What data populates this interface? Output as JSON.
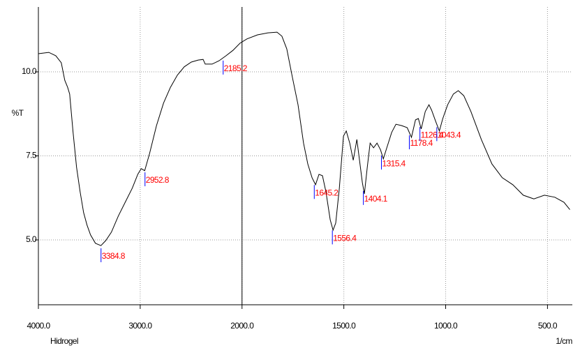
{
  "chart_data": {
    "type": "line",
    "ylabel": "%T",
    "xlabel": "1/cm",
    "caption": "Hidrogel",
    "x": [
      4000,
      3898,
      3829,
      3775,
      3741,
      3713,
      3693,
      3659,
      3625,
      3590,
      3556,
      3522,
      3488,
      3440,
      3386,
      3338,
      3283,
      3215,
      3147,
      3078,
      3024,
      2990,
      2956,
      2908,
      2840,
      2771,
      2703,
      2635,
      2567,
      2498,
      2430,
      2382,
      2362,
      2294,
      2225,
      2157,
      2089,
      2020,
      1976,
      1924,
      1873,
      1828,
      1804,
      1780,
      1753,
      1725,
      1698,
      1677,
      1656,
      1639,
      1622,
      1605,
      1588,
      1567,
      1553,
      1540,
      1522,
      1502,
      1488,
      1471,
      1454,
      1436,
      1423,
      1409,
      1399,
      1385,
      1371,
      1354,
      1337,
      1320,
      1306,
      1289,
      1265,
      1244,
      1216,
      1189,
      1168,
      1148,
      1134,
      1120,
      1100,
      1082,
      1069,
      1048,
      1031,
      1014,
      990,
      962,
      938,
      911,
      876,
      825,
      773,
      722,
      670,
      619,
      567,
      515,
      464,
      419,
      390
    ],
    "values": [
      10.54,
      10.58,
      10.48,
      10.27,
      9.75,
      9.54,
      9.34,
      8.2,
      7.16,
      6.43,
      5.81,
      5.44,
      5.15,
      4.9,
      4.83,
      4.98,
      5.23,
      5.71,
      6.12,
      6.54,
      6.95,
      7.12,
      7.06,
      7.57,
      8.4,
      9.07,
      9.54,
      9.9,
      10.15,
      10.29,
      10.35,
      10.37,
      10.23,
      10.23,
      10.33,
      10.48,
      10.64,
      10.85,
      10.98,
      11.1,
      11.16,
      11.18,
      11.06,
      10.68,
      9.85,
      9.02,
      7.88,
      7.26,
      6.85,
      6.64,
      6.95,
      6.91,
      6.43,
      5.6,
      5.29,
      5.5,
      6.54,
      8.09,
      8.24,
      7.88,
      7.37,
      7.99,
      7.37,
      6.7,
      6.37,
      7.16,
      7.88,
      7.74,
      7.88,
      7.68,
      7.41,
      7.74,
      8.2,
      8.44,
      8.4,
      8.34,
      8.05,
      8.57,
      8.61,
      8.3,
      8.82,
      9.02,
      8.86,
      8.51,
      8.24,
      8.61,
      9.02,
      9.34,
      9.44,
      9.29,
      8.82,
      7.99,
      7.26,
      6.85,
      6.64,
      6.33,
      6.22,
      6.33,
      6.27,
      6.12,
      5.9
    ],
    "color": "#000000",
    "peaks": [
      3384.8,
      2952.8,
      2185.2,
      1645.2,
      1556.4,
      1404.1,
      1315.4,
      1178.4,
      1126.4,
      1043.4
    ],
    "peak_tick_color": "#0000ff",
    "peak_label_color": "#ff0000",
    "xlim": [
      4000,
      378
    ],
    "xbreak": 2000,
    "xticks": [
      {
        "value": 4000,
        "label": "4000.0"
      },
      {
        "value": 3000,
        "label": "3000.0"
      },
      {
        "value": 2000,
        "label": "2000.0"
      },
      {
        "value": 1500,
        "label": "1500.0"
      },
      {
        "value": 1000,
        "label": "1000.0"
      },
      {
        "value": 500,
        "label": "500.0"
      }
    ],
    "ylim": [
      3.07,
      11.93
    ],
    "yticks": [
      {
        "value": 5,
        "label": "5.0"
      },
      {
        "value": 7.5,
        "label": "7.5"
      },
      {
        "value": 10,
        "label": "10.0"
      }
    ],
    "grid": true
  }
}
